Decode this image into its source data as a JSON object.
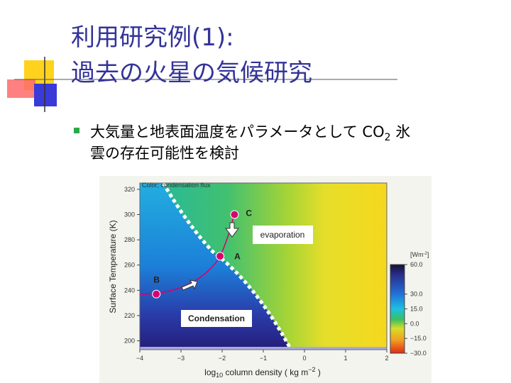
{
  "title_lines": [
    "利用研究例(1):",
    "過去の火星の気候研究"
  ],
  "bullet": {
    "parts": [
      "大気量と地表面温度をパラメータとして CO",
      "2",
      " 氷",
      "雲の存在可能性を検討"
    ]
  },
  "figure": {
    "color_note": "Color; condensation flux",
    "x_label_parts": [
      "log",
      "10",
      " column density ( kg m",
      "−2",
      " )"
    ],
    "y_label": "Surface Temperature (K)",
    "xlim": [
      -4,
      2
    ],
    "xticks": [
      {
        "value": -4,
        "label": "−4"
      },
      {
        "value": -3,
        "label": "−3"
      },
      {
        "value": -2,
        "label": "−2"
      },
      {
        "value": -1,
        "label": "−1"
      },
      0,
      1,
      2
    ],
    "ylim": [
      193,
      325
    ],
    "yticks": [
      200,
      220,
      240,
      260,
      280,
      300,
      320
    ],
    "points": [
      {
        "label": "C",
        "x": -1.7,
        "y": 300
      },
      {
        "label": "A",
        "x": -2.05,
        "y": 267
      },
      {
        "label": "B",
        "x": -3.6,
        "y": 237
      }
    ],
    "point_color": "#d6006f",
    "regions": [
      "evaporation",
      "Condensation"
    ],
    "colorbar": {
      "unit_parts": [
        "[Wm",
        "-2",
        "]"
      ],
      "lim": [
        -30,
        60
      ],
      "ticks": [
        {
          "value": 60,
          "label": "60.0"
        },
        {
          "value": 30,
          "label": "30.0"
        },
        {
          "value": 15,
          "label": "15.0"
        },
        {
          "value": 0,
          "label": "0.0"
        },
        {
          "value": -15,
          "label": "−15.0"
        },
        {
          "value": -30,
          "label": "−30.0"
        }
      ]
    }
  }
}
